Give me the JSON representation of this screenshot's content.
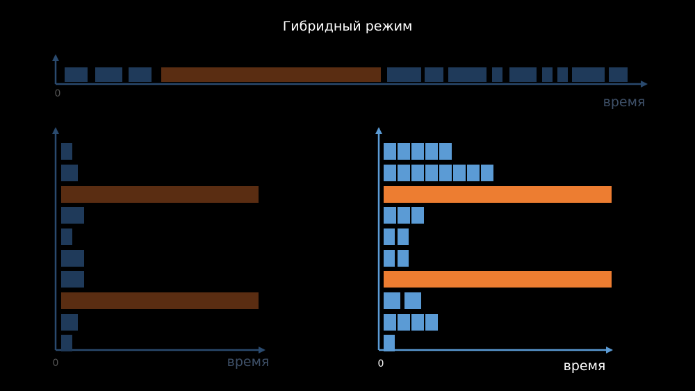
{
  "title": "Гибридный режим",
  "panels": [
    {
      "origin": "0",
      "axis_label": "время"
    },
    {
      "origin": "0",
      "axis_label": "время"
    },
    {
      "origin": "0",
      "axis_label": "время"
    }
  ]
}
